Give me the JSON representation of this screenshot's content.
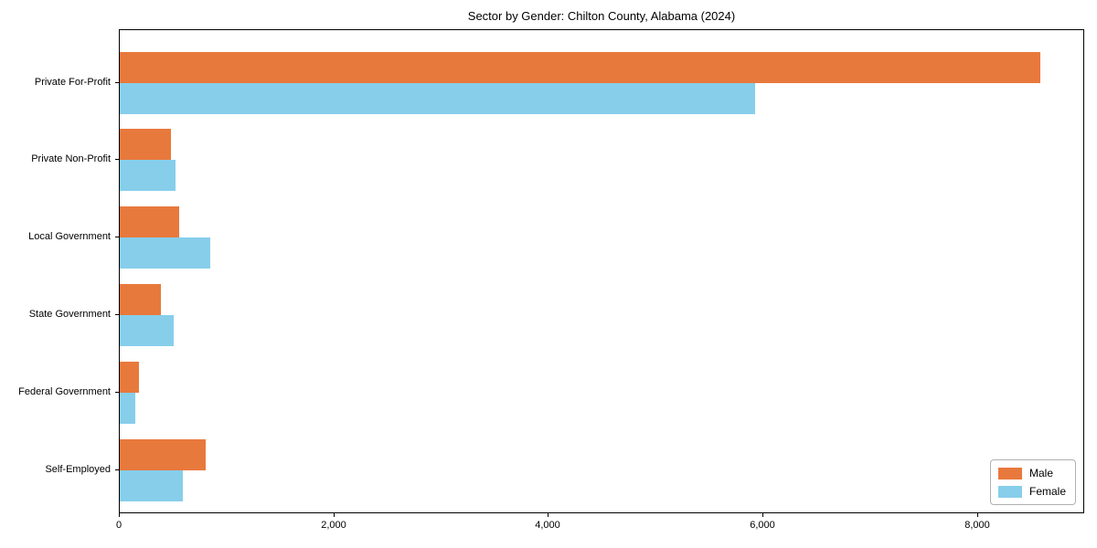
{
  "title": "Sector by Gender: Chilton County, Alabama (2024)",
  "colors": {
    "male": "#e8793d",
    "female": "#87ceeb",
    "axis": "#000000",
    "legend_border": "#b0b0b0",
    "background": "#ffffff"
  },
  "legend": {
    "position": "lower right",
    "entries": [
      {
        "label": "Male",
        "color": "#e8793d"
      },
      {
        "label": "Female",
        "color": "#87ceeb"
      }
    ]
  },
  "chart_data": {
    "type": "bar",
    "orientation": "horizontal",
    "title": "Sector by Gender: Chilton County, Alabama (2024)",
    "xlabel": "",
    "ylabel": "",
    "categories": [
      "Private For-Profit",
      "Private Non-Profit",
      "Local Government",
      "State Government",
      "Federal Government",
      "Self-Employed"
    ],
    "series": [
      {
        "name": "Male",
        "color": "#e8793d",
        "values": [
          8580,
          480,
          550,
          385,
          180,
          800
        ]
      },
      {
        "name": "Female",
        "color": "#87ceeb",
        "values": [
          5920,
          520,
          840,
          505,
          145,
          585
        ]
      }
    ],
    "xlim": [
      0,
      9000
    ],
    "xticks": [
      0,
      2000,
      4000,
      6000,
      8000
    ],
    "xtick_labels": [
      "0",
      "2,000",
      "4,000",
      "6,000",
      "8,000"
    ],
    "grid": false,
    "legend_position": "lower right"
  }
}
